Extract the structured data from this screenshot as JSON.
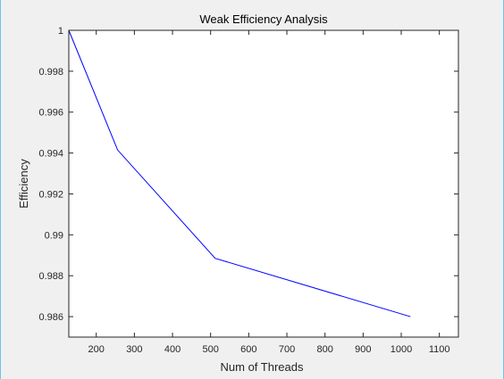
{
  "chart_data": {
    "type": "line",
    "title": "Weak Efficiency Analysis",
    "xlabel": "Num of Threads",
    "ylabel": "Efficiency",
    "xlim": [
      128,
      1150
    ],
    "ylim": [
      0.985,
      1.0
    ],
    "x_ticks": [
      200,
      300,
      400,
      500,
      600,
      700,
      800,
      900,
      1000,
      1100
    ],
    "y_ticks": [
      0.986,
      0.988,
      0.99,
      0.992,
      0.994,
      0.996,
      0.998,
      1
    ],
    "grid": false,
    "series": [
      {
        "color": "#0000ff",
        "x": [
          128,
          256,
          512,
          1024
        ],
        "y": [
          1.0,
          0.99415,
          0.98885,
          0.986
        ]
      }
    ]
  }
}
